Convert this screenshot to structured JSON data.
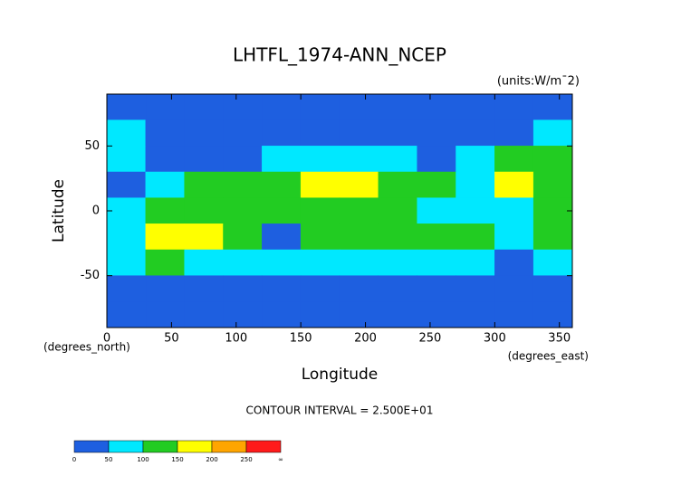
{
  "chart_data": {
    "type": "heatmap",
    "title": "LHTFL_1974-ANN_NCEP",
    "units": "(units:W/m¯2)",
    "x_label": "Longitude",
    "y_label": "Latitude",
    "x_units": "(degrees_east)",
    "y_units": "(degrees_north)",
    "note": "CONTOUR INTERVAL = 2.500E+01",
    "xlim": [
      0,
      360
    ],
    "ylim": [
      -90,
      90
    ],
    "xticks": [
      0,
      50,
      100,
      150,
      200,
      250,
      300,
      350
    ],
    "yticks": [
      -50,
      0,
      50
    ],
    "x_edges": [
      0,
      30,
      60,
      90,
      120,
      150,
      180,
      210,
      240,
      270,
      300,
      330,
      360
    ],
    "y_edges": [
      90,
      70,
      50,
      30,
      10,
      -10,
      -30,
      -50,
      -70,
      -90
    ],
    "values": [
      [
        10,
        10,
        10,
        10,
        10,
        10,
        10,
        10,
        10,
        10,
        20,
        20
      ],
      [
        60,
        30,
        20,
        20,
        20,
        40,
        40,
        30,
        20,
        20,
        40,
        70
      ],
      [
        60,
        40,
        30,
        40,
        80,
        90,
        70,
        60,
        40,
        60,
        120,
        100
      ],
      [
        20,
        80,
        110,
        100,
        110,
        160,
        150,
        140,
        120,
        90,
        160,
        140
      ],
      [
        80,
        120,
        120,
        100,
        100,
        120,
        120,
        110,
        80,
        60,
        90,
        110
      ],
      [
        70,
        160,
        160,
        130,
        30,
        140,
        130,
        120,
        120,
        100,
        60,
        120
      ],
      [
        80,
        100,
        90,
        80,
        70,
        90,
        80,
        90,
        80,
        90,
        40,
        70
      ],
      [
        30,
        40,
        40,
        40,
        40,
        30,
        30,
        30,
        30,
        30,
        30,
        30
      ],
      [
        5,
        5,
        5,
        5,
        5,
        5,
        5,
        5,
        5,
        5,
        5,
        5
      ]
    ],
    "colorbar": {
      "levels": [
        0,
        50,
        100,
        150,
        200,
        250
      ],
      "top_label": "∞",
      "colors": [
        "#1e5fe0",
        "#00e8ff",
        "#22cc22",
        "#ffff00",
        "#ffa500",
        "#ff1a1a"
      ]
    }
  }
}
